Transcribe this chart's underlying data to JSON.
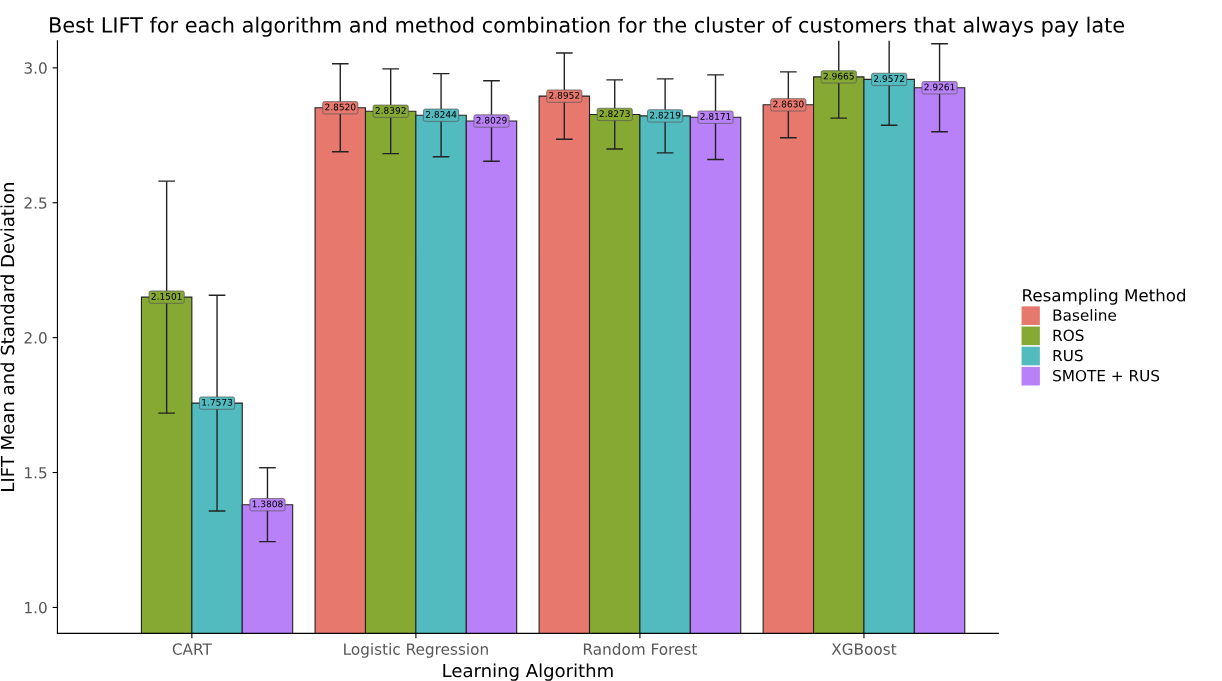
{
  "chart_data": {
    "type": "bar",
    "title": "Best LIFT for each algorithm and method combination for the cluster of customers that always pay late",
    "xlabel": "Learning Algorithm",
    "ylabel": "LIFT Mean and Standard Deviation",
    "legend_title": "Resampling Method",
    "legend": "right",
    "grid": false,
    "categories": [
      "CART",
      "Logistic Regression",
      "Random Forest",
      "XGBoost"
    ],
    "ylim": [
      0.904,
      3.1
    ],
    "yticks": [
      {
        "value": 1,
        "label": "1.0"
      },
      {
        "value": 1.5,
        "label": "1.5"
      },
      {
        "value": 2,
        "label": "2.0"
      },
      {
        "value": 2.5,
        "label": "2.5"
      },
      {
        "value": 3,
        "label": "3.0"
      }
    ],
    "series": [
      {
        "name": "Baseline",
        "color": "#e7786e",
        "values": [
          null,
          2.852,
          2.8952,
          2.863
        ],
        "errors": [
          null,
          0.163,
          0.16,
          0.122
        ],
        "value_labels": [
          null,
          "2.8520",
          "2.8952",
          "2.8630"
        ]
      },
      {
        "name": "ROS",
        "color": "#86a933",
        "values": [
          2.1501,
          2.8392,
          2.8273,
          2.9665
        ],
        "errors": [
          0.43,
          0.157,
          0.128,
          0.153
        ],
        "value_labels": [
          "2.1501",
          "2.8392",
          "2.8273",
          "2.9665"
        ]
      },
      {
        "name": "RUS",
        "color": "#52bbc0",
        "values": [
          1.7573,
          2.8244,
          2.8219,
          2.9572
        ],
        "errors": [
          0.4,
          0.154,
          0.137,
          0.17
        ],
        "value_labels": [
          "1.7573",
          "2.8244",
          "2.8219",
          "2.9572"
        ]
      },
      {
        "name": "SMOTE + RUS",
        "color": "#b981f7",
        "values": [
          1.3808,
          2.8029,
          2.8171,
          2.9261
        ],
        "errors": [
          0.137,
          0.149,
          0.157,
          0.163
        ],
        "value_labels": [
          "1.3808",
          "2.8029",
          "2.8171",
          "2.9261"
        ]
      }
    ]
  }
}
